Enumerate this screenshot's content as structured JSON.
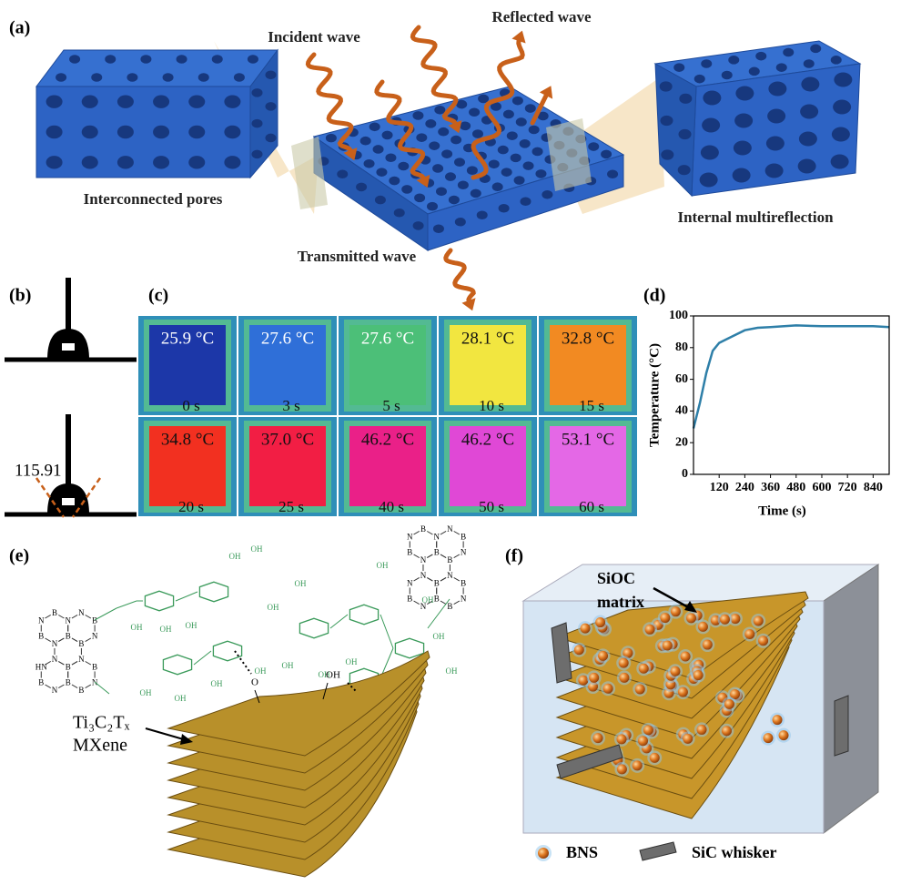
{
  "panel_a": {
    "label": "(a)",
    "incident": "Incident wave",
    "reflected": "Reflected wave",
    "pores": "Interconnected pores",
    "multireflection": "Internal multireflection",
    "transmitted": "Transmitted wave"
  },
  "panel_b": {
    "label": "(b)",
    "angle": "115.91"
  },
  "panel_c": {
    "label": "(c)",
    "tiles": [
      {
        "temperature": "25.9 °C",
        "time": "0 s",
        "color": "#1c37a8",
        "text_color": "#ffffff"
      },
      {
        "temperature": "27.6 °C",
        "time": "3 s",
        "color": "#2f6fd8",
        "text_color": "#ffffff"
      },
      {
        "temperature": "27.6 °C",
        "time": "5 s",
        "color": "#4cbf78",
        "text_color": "#ffffff"
      },
      {
        "temperature": "28.1 °C",
        "time": "10 s",
        "color": "#f2e640",
        "text_color": "#111111"
      },
      {
        "temperature": "32.8 °C",
        "time": "15 s",
        "color": "#f28a22",
        "text_color": "#111111"
      },
      {
        "temperature": "34.8 °C",
        "time": "20 s",
        "color": "#f23020",
        "text_color": "#111111"
      },
      {
        "temperature": "37.0 °C",
        "time": "25 s",
        "color": "#f21e44",
        "text_color": "#111111"
      },
      {
        "temperature": "46.2 °C",
        "time": "40 s",
        "color": "#ea2088",
        "text_color": "#111111"
      },
      {
        "temperature": "46.2 °C",
        "time": "50 s",
        "color": "#e048d6",
        "text_color": "#111111"
      },
      {
        "temperature": "53.1 °C",
        "time": "60 s",
        "color": "#e468e6",
        "text_color": "#111111"
      }
    ]
  },
  "chart_data": {
    "type": "line",
    "panel_label": "(d)",
    "xlabel": "Time (s)",
    "ylabel": "Temperature (°C)",
    "x": [
      0,
      30,
      60,
      90,
      120,
      150,
      180,
      240,
      300,
      360,
      480,
      600,
      720,
      840,
      915
    ],
    "y": [
      29,
      45,
      64,
      78,
      83,
      85,
      87,
      91,
      92.5,
      93,
      94,
      93.5,
      93.5,
      93.5,
      93
    ],
    "color": "#2e7fa8",
    "xlim": [
      0,
      915
    ],
    "ylim": [
      0,
      100
    ],
    "xticks": [
      120,
      240,
      360,
      480,
      600,
      720,
      840
    ],
    "yticks": [
      0,
      20,
      40,
      60,
      80,
      100
    ]
  },
  "panel_e": {
    "label": "(e)",
    "formula": "Ti₃C₂Tₓ",
    "name": "MXene",
    "bond_o": "O",
    "bond_oh": "OH",
    "bn_left": [
      "B",
      "N",
      "B",
      "N",
      "B",
      "N",
      "N",
      "B",
      "N",
      "B",
      "N",
      "B",
      "N",
      "B",
      "N",
      "B",
      "HN",
      "B",
      "N",
      "B"
    ],
    "bn_right": [
      "B",
      "N",
      "B",
      "N",
      "B",
      "N",
      "N",
      "B",
      "N",
      "B",
      "N",
      "B",
      "N",
      "B",
      "N",
      "B",
      "N",
      "B",
      "N",
      "B"
    ],
    "oh_left": [
      "OH",
      "OH",
      "OH",
      "OH",
      "OH",
      "OH",
      "OH",
      "OH",
      "OH",
      "OH"
    ],
    "oh_right": [
      "OH",
      "OH",
      "OH",
      "OH",
      "OH",
      "OH",
      "OH",
      "OH",
      "OH",
      "OH"
    ]
  },
  "panel_f": {
    "label": "(f)",
    "matrix": [
      "SiOC",
      "matrix"
    ],
    "bns": "BNS",
    "whisker": "SiC whisker"
  }
}
